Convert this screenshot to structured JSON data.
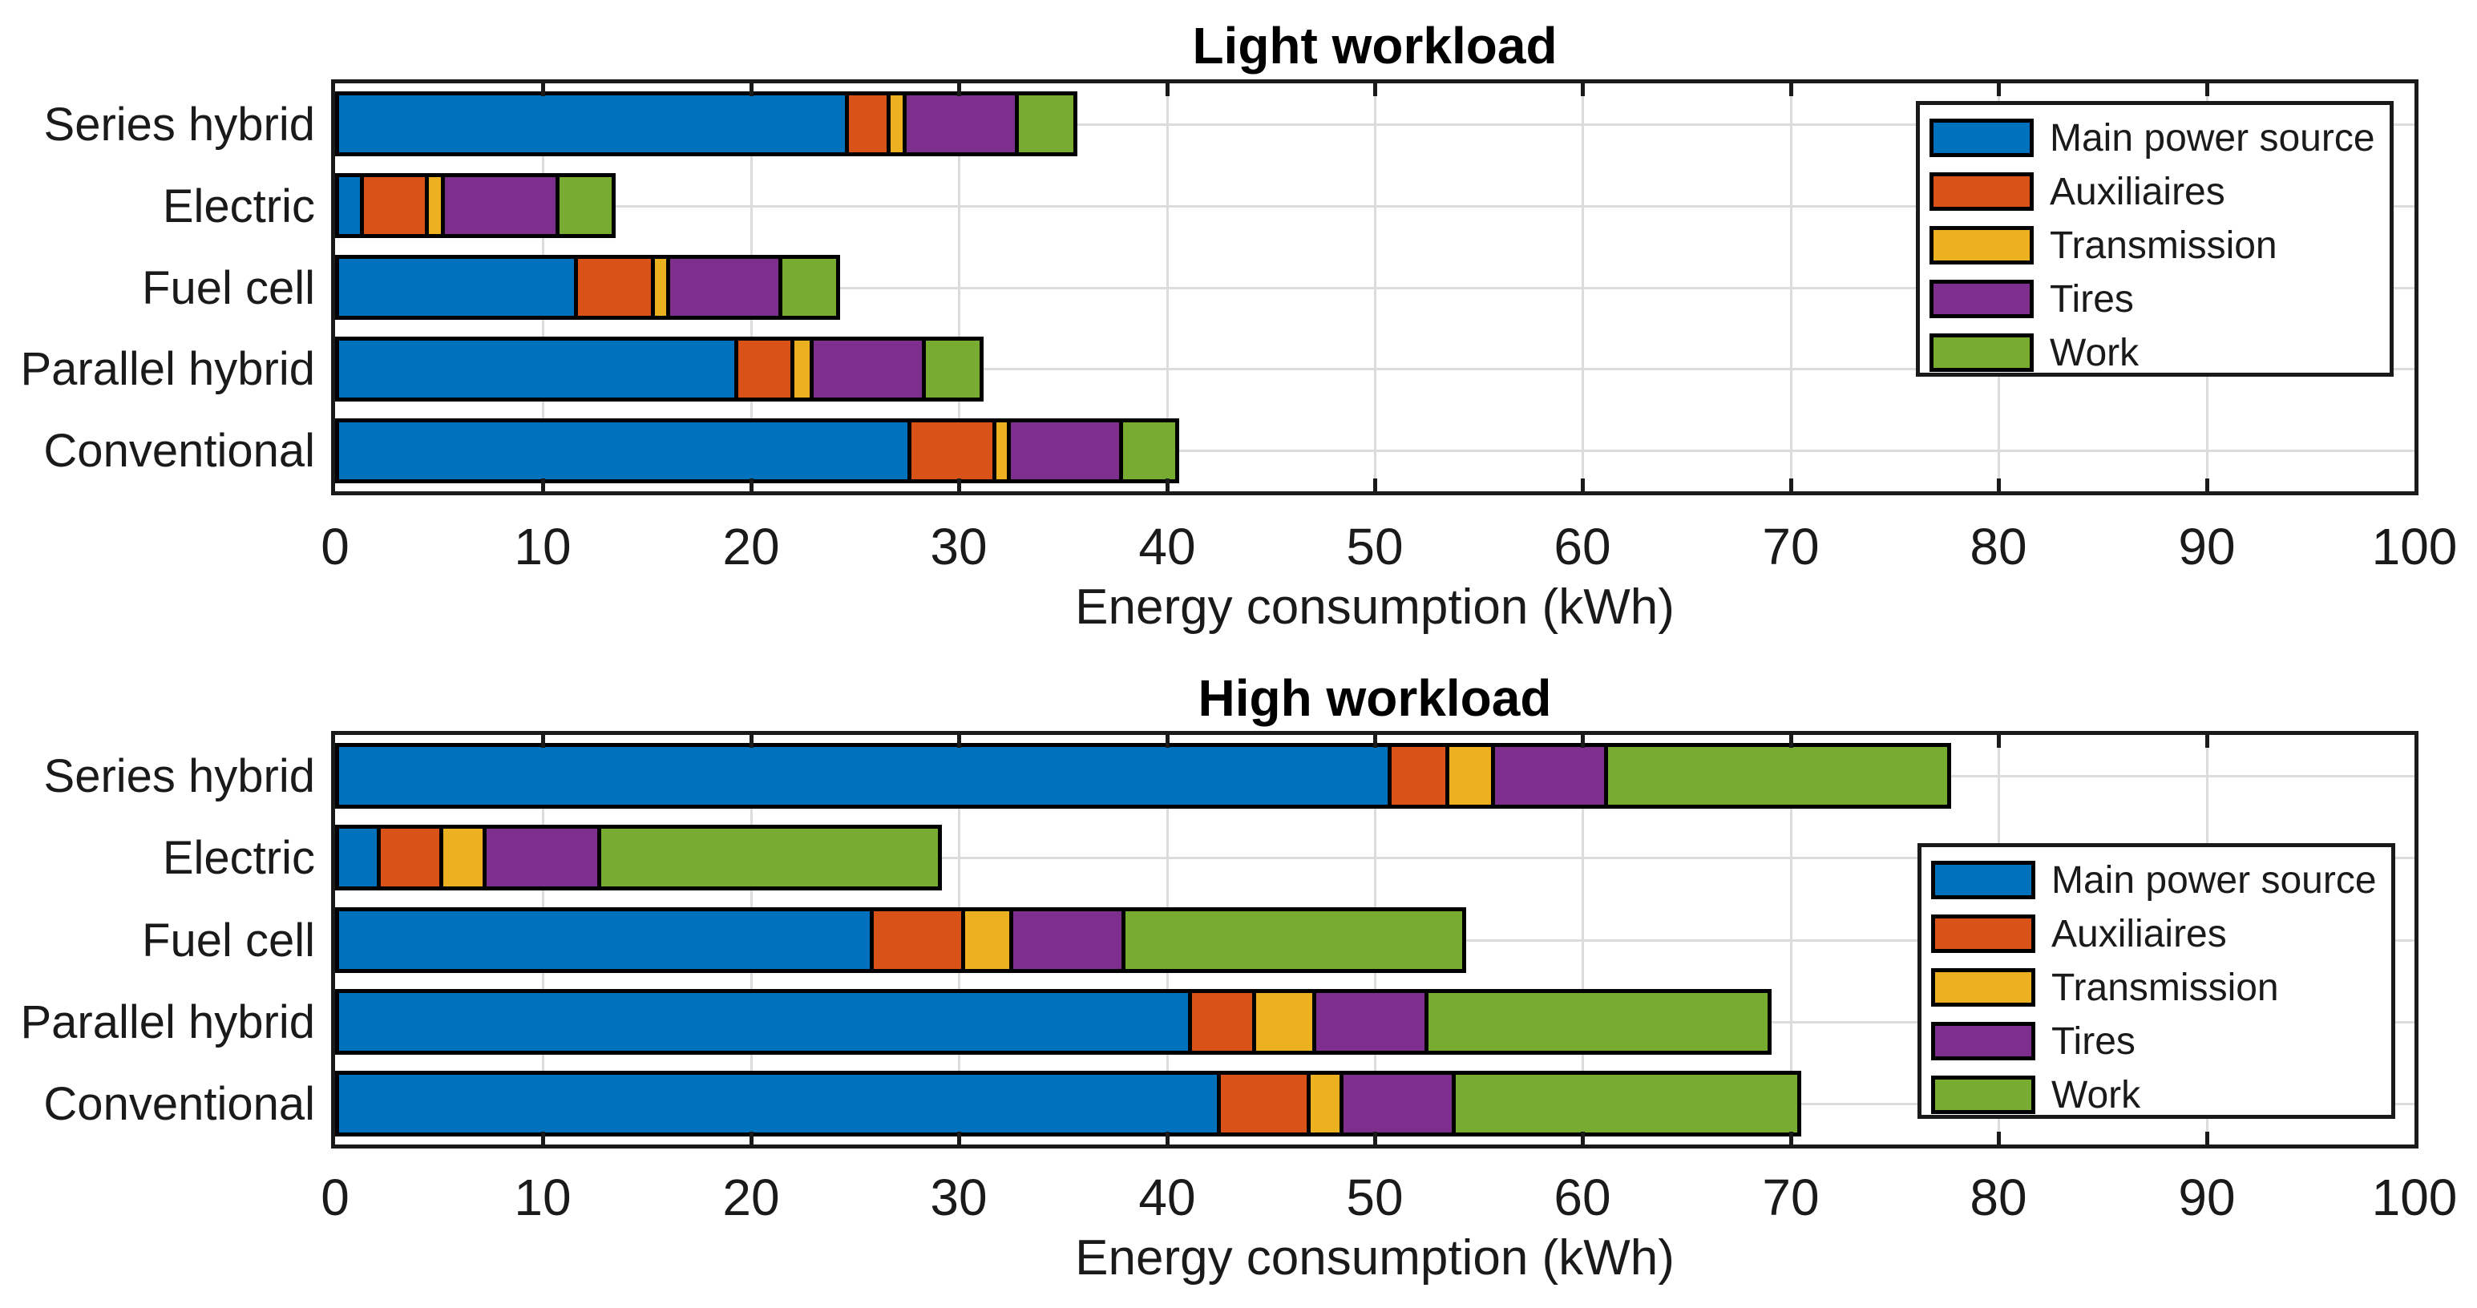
{
  "figure": {
    "background": "#ffffff"
  },
  "palette": {
    "main_power_source": "#0072BD",
    "auxiliaires": "#D95319",
    "transmission": "#EDB120",
    "tires": "#7E2F8E",
    "work": "#77AC30",
    "grid_color": "#DCDCDC",
    "axis_color": "#1a1a1a",
    "text_color": "#1a1a1a"
  },
  "chart_data": [
    {
      "type": "bar",
      "orientation": "horizontal",
      "stacked": true,
      "title": "Light workload",
      "xlabel": "Energy consumption (kWh)",
      "xlim": [
        0,
        100
      ],
      "xticks": [
        0,
        10,
        20,
        30,
        40,
        50,
        60,
        70,
        80,
        90,
        100
      ],
      "grid": true,
      "legend_position": "northeast",
      "legend_labels": [
        "Main power source",
        "Auxiliaires",
        "Transmission",
        "Tires",
        "Work"
      ],
      "categories": [
        "Series hybrid",
        "Electric",
        "Fuel cell",
        "Parallel hybrid",
        "Conventional"
      ],
      "series": [
        {
          "name": "Main power source",
          "color": "#0072BD",
          "values": [
            24.7,
            1.4,
            11.7,
            19.4,
            27.7
          ]
        },
        {
          "name": "Auxiliaires",
          "color": "#D95319",
          "values": [
            2.0,
            3.1,
            3.7,
            2.7,
            4.1
          ]
        },
        {
          "name": "Transmission",
          "color": "#EDB120",
          "values": [
            0.8,
            0.8,
            0.7,
            0.9,
            0.7
          ]
        },
        {
          "name": "Tires",
          "color": "#7E2F8E",
          "values": [
            5.4,
            5.5,
            5.4,
            5.4,
            5.4
          ]
        },
        {
          "name": "Work",
          "color": "#77AC30",
          "values": [
            2.8,
            2.7,
            2.8,
            2.8,
            2.7
          ]
        }
      ],
      "totals": [
        35.7,
        13.5,
        24.3,
        31.2,
        40.6
      ]
    },
    {
      "type": "bar",
      "orientation": "horizontal",
      "stacked": true,
      "title": "High workload",
      "xlabel": "Energy consumption (kWh)",
      "xlim": [
        0,
        100
      ],
      "xticks": [
        0,
        10,
        20,
        30,
        40,
        50,
        60,
        70,
        80,
        90,
        100
      ],
      "grid": true,
      "legend_position": "east",
      "legend_labels": [
        "Main power source",
        "Auxiliaires",
        "Transmission",
        "Tires",
        "Work"
      ],
      "categories": [
        "Series hybrid",
        "Electric",
        "Fuel cell",
        "Parallel hybrid",
        "Conventional"
      ],
      "series": [
        {
          "name": "Main power source",
          "color": "#0072BD",
          "values": [
            50.8,
            2.2,
            25.9,
            41.2,
            42.6
          ]
        },
        {
          "name": "Auxiliaires",
          "color": "#D95319",
          "values": [
            2.8,
            3.0,
            4.4,
            3.1,
            4.3
          ]
        },
        {
          "name": "Transmission",
          "color": "#EDB120",
          "values": [
            2.2,
            2.1,
            2.3,
            2.9,
            1.6
          ]
        },
        {
          "name": "Tires",
          "color": "#7E2F8E",
          "values": [
            5.4,
            5.5,
            5.4,
            5.4,
            5.4
          ]
        },
        {
          "name": "Work",
          "color": "#77AC30",
          "values": [
            16.5,
            16.4,
            16.4,
            16.5,
            16.6
          ]
        }
      ],
      "totals": [
        77.7,
        29.2,
        54.4,
        69.1,
        70.5
      ]
    }
  ]
}
